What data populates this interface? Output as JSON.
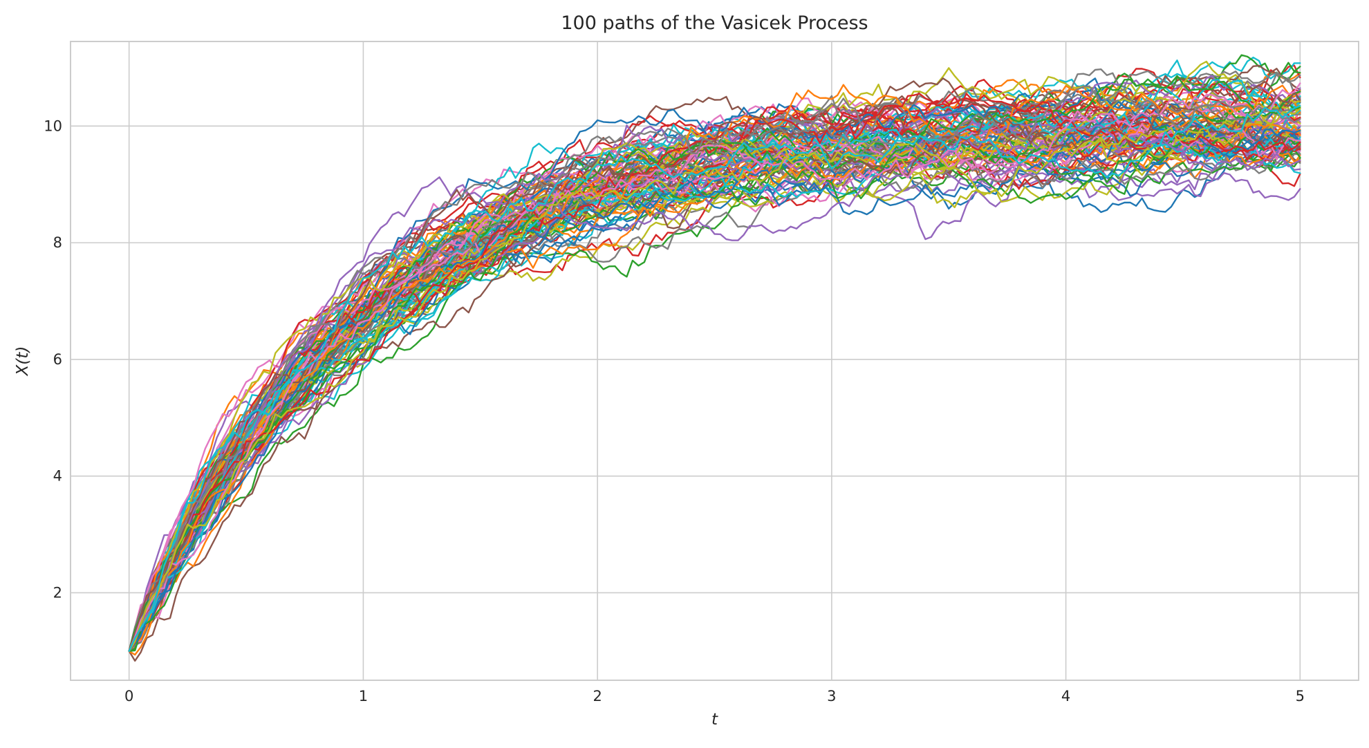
{
  "chart_data": {
    "type": "line",
    "title": "100 paths of the Vasicek Process",
    "xlabel": "t",
    "ylabel": "X(t)",
    "xlim": [
      -0.25,
      5.25
    ],
    "ylim": [
      0.5,
      11.45
    ],
    "xticks": [
      0,
      1,
      2,
      3,
      4,
      5
    ],
    "yticks": [
      2,
      4,
      6,
      8,
      10
    ],
    "xtick_labels": [
      "0",
      "1",
      "2",
      "3",
      "4",
      "5"
    ],
    "ytick_labels": [
      "2",
      "4",
      "6",
      "8",
      "10"
    ],
    "grid": true,
    "legend": "none",
    "num_paths": 100,
    "process": {
      "x0": 1.0,
      "long_term_mean": 10.0,
      "mean_reversion_speed": 1.0,
      "volatility": 0.6,
      "t_start": 0,
      "t_end": 5,
      "steps": 200
    },
    "colors": [
      "#1f77b4",
      "#ff7f0e",
      "#2ca02c",
      "#d62728",
      "#9467bd",
      "#8c564b",
      "#e377c2",
      "#7f7f7f",
      "#bcbd22",
      "#17becf"
    ]
  }
}
